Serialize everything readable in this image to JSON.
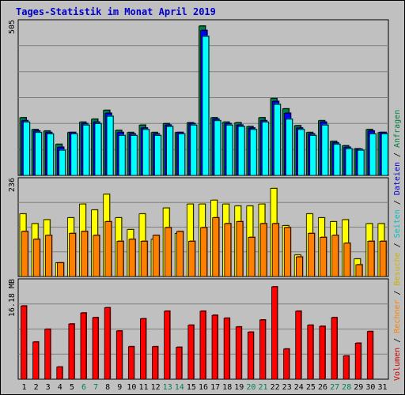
{
  "title": "Tages-Statistik im Monat April 2019",
  "chart_data": {
    "type": "bar",
    "categories": [
      "1",
      "2",
      "3",
      "4",
      "5",
      "6",
      "7",
      "8",
      "9",
      "10",
      "11",
      "12",
      "13",
      "14",
      "15",
      "16",
      "17",
      "18",
      "19",
      "20",
      "21",
      "22",
      "23",
      "24",
      "25",
      "26",
      "27",
      "28",
      "29",
      "30",
      "31"
    ],
    "weekend_days": [
      "6",
      "7",
      "13",
      "14",
      "20",
      "21",
      "27",
      "28"
    ],
    "panels": [
      {
        "id": "requests",
        "ymax_label": "505",
        "ymax": 505,
        "series": [
          {
            "name": "Anfragen",
            "color": "#008040",
            "values": [
              195,
              155,
              150,
              105,
              145,
              180,
              190,
              220,
              152,
              145,
              170,
              145,
              175,
              145,
              178,
              505,
              195,
              180,
              178,
              165,
              195,
              260,
              225,
              168,
              145,
              185,
              115,
              100,
              90,
              155,
              145
            ]
          },
          {
            "name": "Dateien",
            "color": "#0000ff",
            "values": [
              185,
              150,
              145,
              95,
              145,
              175,
              180,
              210,
              145,
              140,
              160,
              140,
              170,
              145,
              175,
              490,
              190,
              175,
              170,
              160,
              185,
              250,
              210,
              160,
              140,
              180,
              110,
              95,
              88,
              150,
              145
            ]
          },
          {
            "name": "Seiten",
            "color": "#00ffff",
            "values": [
              180,
              145,
              140,
              85,
              140,
              170,
              175,
              200,
              135,
              135,
              155,
              135,
              165,
              140,
              170,
              470,
              185,
              170,
              165,
              155,
              180,
              240,
              190,
              155,
              135,
              170,
              105,
              90,
              85,
              140,
              140
            ]
          }
        ]
      },
      {
        "id": "visits",
        "ymax_label": "236",
        "ymax": 236,
        "series": [
          {
            "name": "Besuche",
            "color": "#ffff00",
            "values": [
              160,
              135,
              145,
              35,
              150,
              185,
              170,
              210,
              150,
              120,
              160,
              95,
              175,
              110,
              185,
              185,
              195,
              185,
              180,
              180,
              185,
              225,
              130,
              55,
              160,
              150,
              140,
              145,
              45,
              135,
              135
            ]
          },
          {
            "name": "Rechner",
            "color": "#ff8000",
            "values": [
              115,
              95,
              105,
              35,
              110,
              115,
              105,
              140,
              90,
              95,
              90,
              105,
              125,
              115,
              90,
              125,
              150,
              135,
              140,
              100,
              135,
              135,
              125,
              50,
              110,
              100,
              105,
              85,
              30,
              90,
              90
            ]
          }
        ]
      },
      {
        "id": "volume",
        "ymax_label": "16.18 MB",
        "ymax": 16.18,
        "series": [
          {
            "name": "Volumen",
            "color": "#ff0000",
            "values": [
              12.6,
              6.4,
              8.6,
              2.1,
              9.5,
              11.4,
              10.6,
              12.3,
              8.3,
              5.6,
              10.4,
              5.6,
              11.7,
              5.5,
              9.3,
              11.7,
              11.0,
              10.5,
              9.0,
              8.1,
              10.2,
              15.9,
              5.2,
              11.7,
              9.3,
              9.1,
              10.6,
              4.0,
              6.2,
              8.2,
              null
            ]
          }
        ]
      }
    ],
    "legend": [
      "Volumen",
      "Rechner",
      "Besuche",
      "Seiten",
      "Dateien",
      "Anfragen"
    ]
  },
  "legend_separator": " / "
}
